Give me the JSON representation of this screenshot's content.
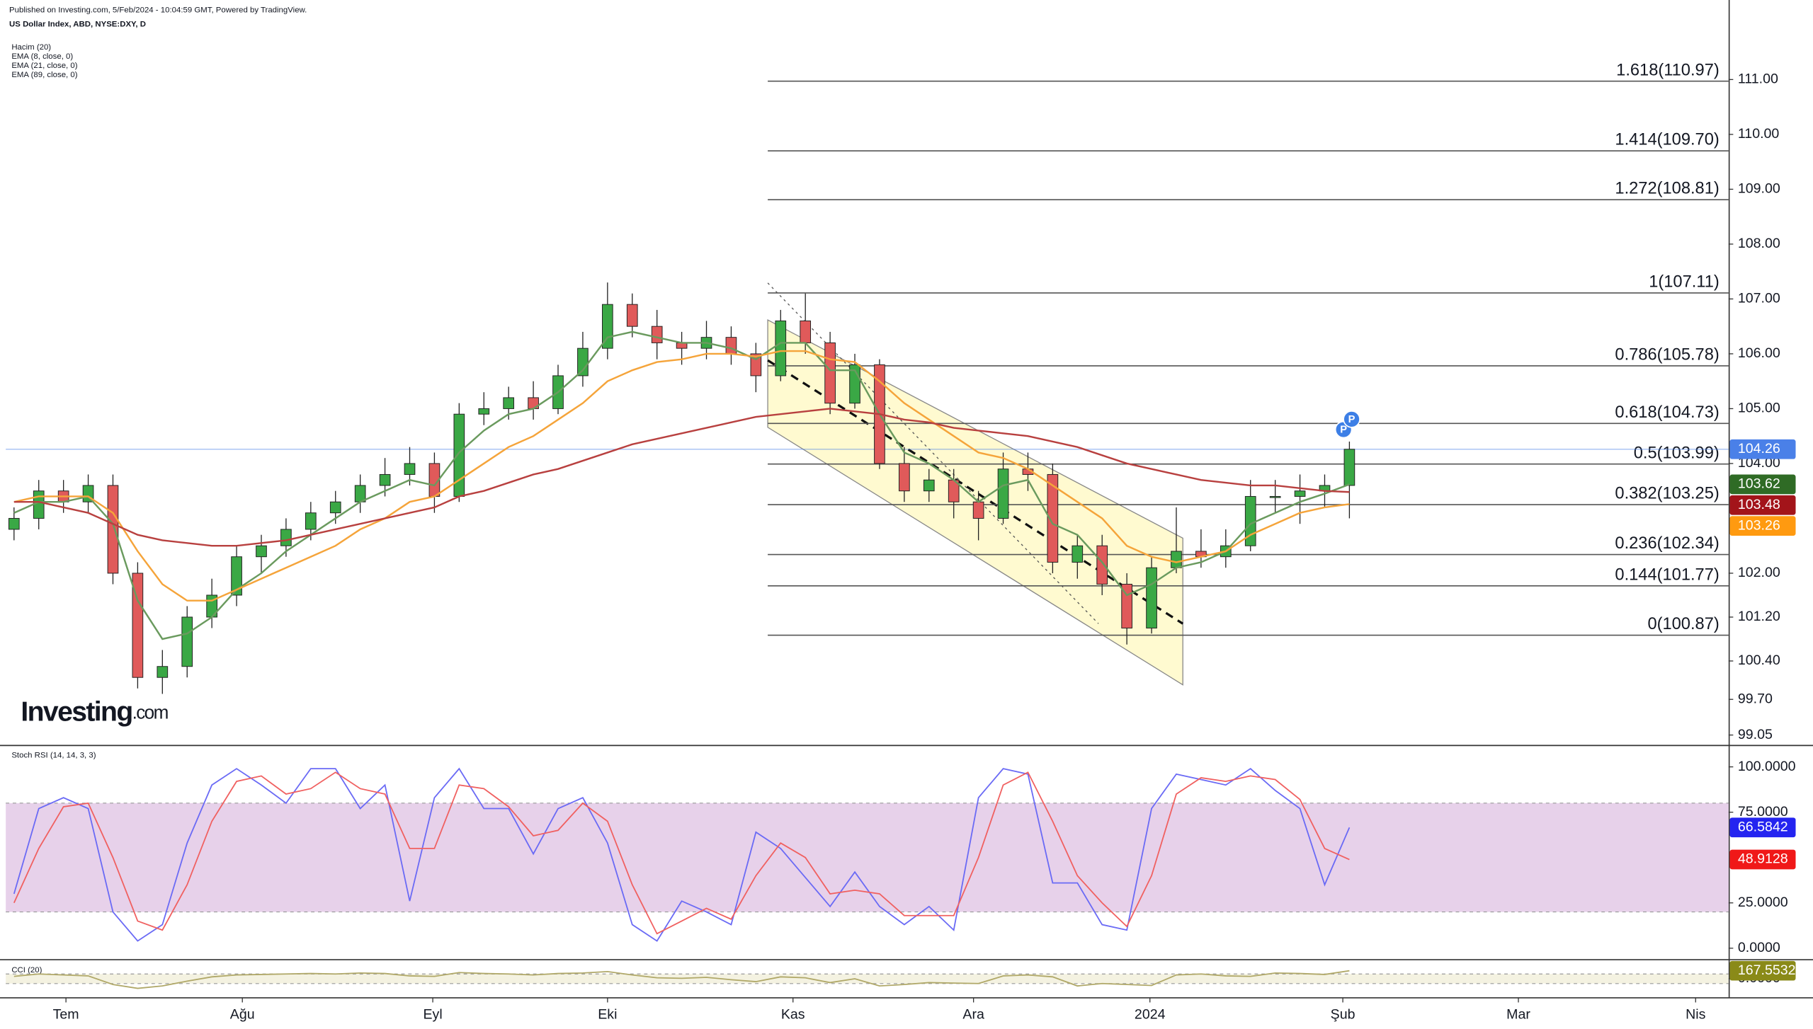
{
  "header": {
    "published": "Published on Investing.com, 5/Feb/2024 - 10:04:59 GMT, Powered by TradingView.",
    "symbol": "US Dollar Index, ABD, NYSE:DXY, D"
  },
  "logo": {
    "name": "Investing",
    "suffix": ".com"
  },
  "events": [
    {
      "label": "P"
    },
    {
      "label": "P"
    }
  ],
  "chart_data": [
    {
      "type": "candlestick",
      "volume_label": "Hacim (20)",
      "up_color": "#3aa845",
      "down_color": "#e05a5a",
      "x": [
        1,
        4,
        7,
        10,
        13,
        16,
        19,
        22,
        25,
        28,
        31,
        34,
        37,
        40,
        43,
        46,
        49,
        52,
        55,
        58,
        61,
        64,
        67,
        70,
        73,
        76,
        79,
        82,
        85,
        88,
        91,
        94,
        97,
        100,
        103,
        106,
        109,
        112,
        115,
        118,
        121,
        124,
        127,
        130,
        133,
        136,
        139,
        142,
        145,
        148,
        151,
        154,
        157,
        160,
        163
      ],
      "open": [
        102.8,
        103.0,
        103.5,
        103.3,
        103.6,
        102.0,
        100.1,
        100.3,
        101.2,
        101.6,
        102.3,
        102.5,
        102.8,
        103.1,
        103.3,
        103.6,
        103.8,
        104.0,
        103.4,
        104.9,
        105.0,
        105.2,
        105.0,
        105.6,
        106.1,
        106.9,
        106.5,
        106.2,
        106.1,
        106.3,
        106.0,
        105.6,
        106.6,
        106.2,
        105.1,
        105.8,
        104.0,
        103.5,
        103.7,
        103.3,
        103.0,
        103.9,
        103.8,
        102.2,
        102.5,
        101.8,
        101.0,
        102.1,
        102.4,
        102.3,
        102.5,
        103.4,
        103.4,
        103.5,
        103.6
      ],
      "high": [
        103.2,
        103.7,
        103.7,
        103.8,
        103.8,
        102.2,
        100.6,
        101.4,
        101.9,
        102.5,
        102.7,
        103.0,
        103.3,
        103.5,
        103.8,
        104.1,
        104.3,
        104.2,
        105.1,
        105.3,
        105.4,
        105.5,
        105.8,
        106.4,
        107.3,
        107.1,
        106.8,
        106.4,
        106.6,
        106.5,
        106.2,
        106.8,
        107.1,
        106.4,
        106.0,
        105.9,
        104.3,
        103.9,
        103.9,
        103.5,
        104.2,
        104.2,
        104.0,
        102.7,
        102.7,
        102.0,
        102.3,
        103.2,
        102.8,
        102.8,
        103.7,
        103.7,
        103.8,
        103.8,
        104.4
      ],
      "low": [
        102.6,
        102.8,
        103.1,
        103.1,
        101.8,
        99.9,
        99.8,
        100.1,
        101.0,
        101.4,
        102.0,
        102.3,
        102.6,
        102.9,
        103.1,
        103.4,
        103.6,
        103.1,
        103.3,
        104.7,
        104.8,
        104.8,
        104.9,
        105.4,
        105.9,
        106.3,
        105.9,
        105.8,
        105.9,
        105.8,
        105.3,
        105.5,
        106.0,
        104.9,
        105.0,
        103.9,
        103.3,
        103.3,
        103.0,
        102.6,
        102.9,
        103.5,
        102.0,
        101.9,
        101.6,
        100.7,
        100.9,
        102.0,
        102.1,
        102.1,
        102.4,
        103.1,
        102.9,
        103.2,
        103.0
      ],
      "close": [
        103.0,
        103.5,
        103.3,
        103.6,
        102.0,
        100.1,
        100.3,
        101.2,
        101.6,
        102.3,
        102.5,
        102.8,
        103.1,
        103.3,
        103.6,
        103.8,
        104.0,
        103.4,
        104.9,
        105.0,
        105.2,
        105.0,
        105.6,
        106.1,
        106.9,
        106.5,
        106.2,
        106.1,
        106.3,
        106.0,
        105.6,
        106.6,
        106.2,
        105.1,
        105.8,
        104.0,
        103.5,
        103.7,
        103.3,
        103.0,
        103.9,
        103.8,
        102.2,
        102.5,
        101.8,
        101.0,
        102.1,
        102.4,
        102.3,
        102.5,
        103.4,
        103.4,
        103.5,
        103.6,
        104.26
      ],
      "series": [
        {
          "name": "EMA (8, close, 0)",
          "color": "#6a9a5e",
          "values": [
            103.1,
            103.3,
            103.3,
            103.4,
            102.9,
            101.5,
            100.8,
            100.9,
            101.2,
            101.7,
            102.0,
            102.4,
            102.7,
            103.0,
            103.3,
            103.5,
            103.7,
            103.6,
            104.2,
            104.6,
            104.9,
            105.0,
            105.3,
            105.7,
            106.3,
            106.4,
            106.3,
            106.2,
            106.2,
            106.1,
            105.9,
            106.2,
            106.2,
            105.7,
            105.7,
            104.9,
            104.2,
            104.0,
            103.7,
            103.3,
            103.6,
            103.7,
            102.9,
            102.7,
            102.2,
            101.6,
            101.8,
            102.1,
            102.2,
            102.4,
            102.9,
            103.1,
            103.3,
            103.45,
            103.62
          ]
        },
        {
          "name": "EMA (21, close, 0)",
          "color": "#f5a43a",
          "values": [
            103.3,
            103.4,
            103.4,
            103.4,
            103.1,
            102.4,
            101.8,
            101.5,
            101.5,
            101.7,
            101.9,
            102.1,
            102.3,
            102.5,
            102.8,
            103.0,
            103.3,
            103.4,
            103.7,
            104.0,
            104.3,
            104.5,
            104.8,
            105.1,
            105.5,
            105.7,
            105.85,
            105.9,
            106.0,
            106.0,
            105.95,
            106.05,
            106.05,
            105.9,
            105.85,
            105.5,
            105.1,
            104.8,
            104.5,
            104.2,
            104.1,
            103.9,
            103.6,
            103.3,
            103.0,
            102.5,
            102.3,
            102.2,
            102.3,
            102.4,
            102.7,
            102.9,
            103.1,
            103.2,
            103.26
          ]
        },
        {
          "name": "EMA (89, close, 0)",
          "color": "#b8403f",
          "values": [
            103.3,
            103.3,
            103.2,
            103.1,
            102.9,
            102.7,
            102.6,
            102.55,
            102.5,
            102.5,
            102.55,
            102.6,
            102.7,
            102.8,
            102.9,
            103.0,
            103.1,
            103.2,
            103.4,
            103.5,
            103.65,
            103.8,
            103.9,
            104.05,
            104.2,
            104.35,
            104.45,
            104.55,
            104.65,
            104.75,
            104.85,
            104.9,
            104.95,
            105.0,
            104.95,
            104.9,
            104.8,
            104.75,
            104.65,
            104.6,
            104.55,
            104.5,
            104.4,
            104.3,
            104.15,
            104.0,
            103.9,
            103.8,
            103.7,
            103.65,
            103.6,
            103.6,
            103.55,
            103.5,
            103.48
          ]
        }
      ],
      "xlim": [
        0,
        209
      ],
      "xticks": [
        {
          "value": 7.3,
          "label": "Tem"
        },
        {
          "value": 28.7,
          "label": "Ağu"
        },
        {
          "value": 51.8,
          "label": "Eyl"
        },
        {
          "value": 73,
          "label": "Eki"
        },
        {
          "value": 95.5,
          "label": "Kas"
        },
        {
          "value": 117.4,
          "label": "Ara"
        },
        {
          "value": 138.8,
          "label": "2024"
        },
        {
          "value": 162.2,
          "label": "Şub"
        },
        {
          "value": 183.5,
          "label": "Mar"
        },
        {
          "value": 205,
          "label": "Nis"
        }
      ],
      "ylim": [
        98.87,
        112.45
      ],
      "yticks": [
        {
          "value": 111,
          "label": "111.00"
        },
        {
          "value": 110,
          "label": "110.00"
        },
        {
          "value": 109,
          "label": "109.00"
        },
        {
          "value": 108,
          "label": "108.00"
        },
        {
          "value": 107,
          "label": "107.00"
        },
        {
          "value": 106,
          "label": "106.00"
        },
        {
          "value": 105,
          "label": "105.00"
        },
        {
          "value": 104,
          "label": "104.00"
        },
        {
          "value": 102,
          "label": "102.00"
        },
        {
          "value": 101.2,
          "label": "101.20"
        },
        {
          "value": 100.4,
          "label": "100.40"
        },
        {
          "value": 99.7,
          "label": "99.70"
        },
        {
          "value": 99.05,
          "label": "99.05"
        }
      ],
      "levels": [
        {
          "value": 110.97,
          "label": "1.618(110.97)"
        },
        {
          "value": 109.7,
          "label": "1.414(109.70)"
        },
        {
          "value": 108.81,
          "label": "1.272(108.81)"
        },
        {
          "value": 107.11,
          "label": "1(107.11)"
        },
        {
          "value": 105.78,
          "label": "0.786(105.78)"
        },
        {
          "value": 104.73,
          "label": "0.618(104.73)"
        },
        {
          "value": 103.99,
          "label": "0.5(103.99)"
        },
        {
          "value": 103.25,
          "label": "0.382(103.25)"
        },
        {
          "value": 102.34,
          "label": "0.236(102.34)"
        },
        {
          "value": 101.77,
          "label": "0.144(101.77)"
        },
        {
          "value": 100.87,
          "label": "0(100.87)"
        }
      ],
      "price_labels": [
        {
          "value": 104.26,
          "color": "#4a80e8",
          "guide": true
        },
        {
          "value": 103.62,
          "color": "#2f6b25"
        },
        {
          "value": 103.48,
          "color": "#a3141a"
        },
        {
          "value": 103.26,
          "color": "#ff9a10"
        }
      ]
    },
    {
      "type": "line",
      "title": "Stoch RSI (14, 14, 3, 3)",
      "x": [
        1,
        4,
        7,
        10,
        13,
        16,
        19,
        22,
        25,
        28,
        31,
        34,
        37,
        40,
        43,
        46,
        49,
        52,
        55,
        58,
        61,
        64,
        67,
        70,
        73,
        76,
        79,
        82,
        85,
        88,
        91,
        94,
        97,
        100,
        103,
        106,
        109,
        112,
        115,
        118,
        121,
        124,
        127,
        130,
        133,
        136,
        139,
        142,
        145,
        148,
        151,
        154,
        157,
        160,
        163
      ],
      "series": [
        {
          "name": "K",
          "color": "#6a6af5",
          "values": [
            30,
            77,
            83,
            77,
            20,
            4,
            13,
            58,
            90,
            99,
            90,
            80,
            99,
            99,
            77,
            90,
            26,
            83,
            99,
            77,
            77,
            52,
            77,
            83,
            58,
            13,
            4,
            26,
            20,
            13,
            64,
            55,
            39,
            23,
            42,
            23,
            13,
            23,
            10,
            83,
            99,
            96,
            36,
            36,
            13,
            10,
            77,
            96,
            93,
            90,
            99,
            87,
            77,
            35,
            66.5842
          ]
        },
        {
          "name": "D",
          "color": "#f06060",
          "values": [
            25,
            55,
            78,
            80,
            50,
            15,
            10,
            35,
            70,
            92,
            95,
            85,
            88,
            97,
            88,
            85,
            55,
            55,
            90,
            88,
            78,
            62,
            65,
            80,
            70,
            35,
            8,
            15,
            22,
            16,
            40,
            58,
            50,
            30,
            32,
            30,
            18,
            18,
            18,
            50,
            90,
            97,
            70,
            40,
            25,
            12,
            40,
            85,
            94,
            92,
            95,
            93,
            82,
            55,
            48.9128
          ]
        }
      ],
      "xlim": [
        0,
        209
      ],
      "ylim": [
        -5.7,
        110.2
      ],
      "band": [
        20,
        80
      ],
      "yticks": [
        {
          "value": 100,
          "label": "100.0000"
        },
        {
          "value": 75,
          "label": "75.0000"
        },
        {
          "value": 25,
          "label": "25.0000"
        },
        {
          "value": 0,
          "label": "0.0000"
        }
      ],
      "price_labels": [
        {
          "value": 66.5842,
          "color": "#2424f0"
        },
        {
          "value": 48.9128,
          "color": "#f01818"
        }
      ]
    },
    {
      "type": "line",
      "title": "CCI (20)",
      "x": [
        1,
        4,
        7,
        10,
        13,
        16,
        19,
        22,
        25,
        28,
        31,
        34,
        37,
        40,
        43,
        46,
        49,
        52,
        55,
        58,
        61,
        64,
        67,
        70,
        73,
        76,
        79,
        82,
        85,
        88,
        91,
        94,
        97,
        100,
        103,
        106,
        109,
        112,
        115,
        118,
        121,
        124,
        127,
        130,
        133,
        136,
        139,
        142,
        145,
        148,
        151,
        154,
        157,
        160,
        163
      ],
      "series": [
        {
          "name": "CCI",
          "color": "#b0a868",
          "values": [
            50,
            100,
            80,
            60,
            -120,
            -200,
            -150,
            -50,
            40,
            80,
            90,
            100,
            110,
            100,
            120,
            110,
            60,
            50,
            130,
            110,
            100,
            80,
            110,
            120,
            150,
            80,
            20,
            10,
            30,
            -20,
            -60,
            40,
            20,
            -80,
            0,
            -150,
            -120,
            -80,
            -90,
            -100,
            60,
            80,
            40,
            -150,
            -100,
            -120,
            -140,
            80,
            100,
            60,
            50,
            120,
            110,
            90,
            167.5532
          ]
        }
      ],
      "xlim": [
        0,
        209
      ],
      "ylim": [
        -350,
        350
      ],
      "band": [
        -100,
        100
      ],
      "yticks": [
        {
          "value": 0,
          "label": "0.0000"
        }
      ],
      "price_labels": [
        {
          "value": 167.5532,
          "color": "#8a8a18"
        }
      ]
    }
  ]
}
